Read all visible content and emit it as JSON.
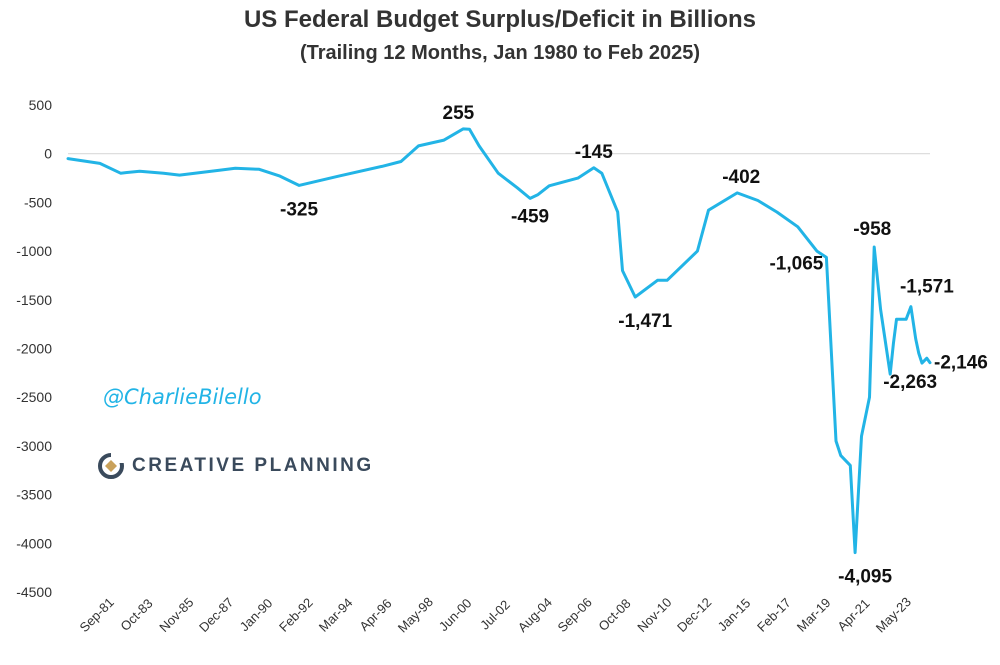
{
  "page": {
    "title": "US Federal Budget Surplus/Deficit in Billions",
    "subtitle": "(Trailing 12 Months, Jan 1980 to Feb 2025)"
  },
  "watermark": {
    "handle": "@CharlieBilello",
    "brand": "CREATIVE PLANNING",
    "brand_mark": "creative-planning-logo",
    "handle_color": "#22b4e6"
  },
  "chart_data": {
    "type": "line",
    "title": "US Federal Budget Surplus/Deficit in Billions",
    "subtitle": "(Trailing 12 Months, Jan 1980 to Feb 2025)",
    "xlabel": "",
    "ylabel": "",
    "ylim": [
      -4500,
      500
    ],
    "yticks": [
      500,
      0,
      -500,
      -1000,
      -1500,
      -2000,
      -2500,
      -3000,
      -3500,
      -4000,
      -4500
    ],
    "xticks": [
      "Sep-81",
      "Oct-83",
      "Nov-85",
      "Dec-87",
      "Jan-90",
      "Feb-92",
      "Mar-94",
      "Apr-96",
      "May-98",
      "Jun-00",
      "Jul-02",
      "Aug-04",
      "Sep-06",
      "Oct-08",
      "Nov-10",
      "Dec-12",
      "Jan-15",
      "Feb-17",
      "Mar-19",
      "Apr-21",
      "May-23"
    ],
    "x_axis_at": 0,
    "grid": false,
    "line_color": "#22b4e6",
    "series": [
      {
        "x": [
          "Jan-80",
          "Sep-81",
          "Oct-82",
          "Oct-83",
          "Jan-85",
          "Nov-85",
          "Dec-87",
          "Oct-88",
          "Jan-90",
          "Feb-91",
          "Feb-92",
          "Mar-94",
          "Jun-96",
          "Jun-97",
          "May-98",
          "Sep-99",
          "Sep-00",
          "Jan-01",
          "Jul-01",
          "Jul-02",
          "Jul-03",
          "Mar-04",
          "Aug-04",
          "Mar-05",
          "Sep-06",
          "Jul-07",
          "Dec-07",
          "Oct-08",
          "Jan-09",
          "Sep-09",
          "Nov-10",
          "May-11",
          "Dec-12",
          "Jul-13",
          "Jan-15",
          "Feb-16",
          "Feb-17",
          "Mar-18",
          "Mar-19",
          "Sep-19",
          "Mar-20",
          "Jun-20",
          "Dec-20",
          "Mar-21",
          "Jul-21",
          "Dec-21",
          "Mar-22",
          "Jul-22",
          "Jan-23",
          "Mar-23",
          "May-23",
          "Nov-23",
          "Feb-24",
          "May-24",
          "Jul-24",
          "Sep-24",
          "Dec-24",
          "Feb-25"
        ],
        "y": [
          -50,
          -100,
          -200,
          -180,
          -200,
          -220,
          -170,
          -150,
          -160,
          -230,
          -325,
          -230,
          -130,
          -80,
          80,
          140,
          255,
          250,
          80,
          -200,
          -350,
          -459,
          -420,
          -330,
          -250,
          -145,
          -200,
          -600,
          -1200,
          -1471,
          -1300,
          -1300,
          -1000,
          -580,
          -402,
          -480,
          -600,
          -750,
          -1000,
          -1065,
          -2950,
          -3100,
          -3200,
          -4095,
          -2900,
          -2500,
          -958,
          -1600,
          -2263,
          -1950,
          -1700,
          -1700,
          -1571,
          -1900,
          -2050,
          -2150,
          -2100,
          -2146
        ]
      }
    ],
    "annotations": [
      {
        "x": "Jun-00",
        "y": 255,
        "label": "255"
      },
      {
        "x": "Feb-92",
        "y": -325,
        "label": "-325"
      },
      {
        "x": "Mar-04",
        "y": -459,
        "label": "-459"
      },
      {
        "x": "Jul-07",
        "y": -145,
        "label": "-145"
      },
      {
        "x": "Sep-09",
        "y": -1471,
        "label": "-1,471"
      },
      {
        "x": "Jan-15",
        "y": -402,
        "label": "-402"
      },
      {
        "x": "Sep-19",
        "y": -1065,
        "label": "-1,065"
      },
      {
        "x": "Mar-21",
        "y": -4095,
        "label": "-4,095"
      },
      {
        "x": "Mar-22",
        "y": -958,
        "label": "-958"
      },
      {
        "x": "Jan-23",
        "y": -2263,
        "label": "-2,263"
      },
      {
        "x": "Feb-24",
        "y": -1571,
        "label": "-1,571"
      },
      {
        "x": "Feb-25",
        "y": -2146,
        "label": "-2,146"
      }
    ]
  }
}
